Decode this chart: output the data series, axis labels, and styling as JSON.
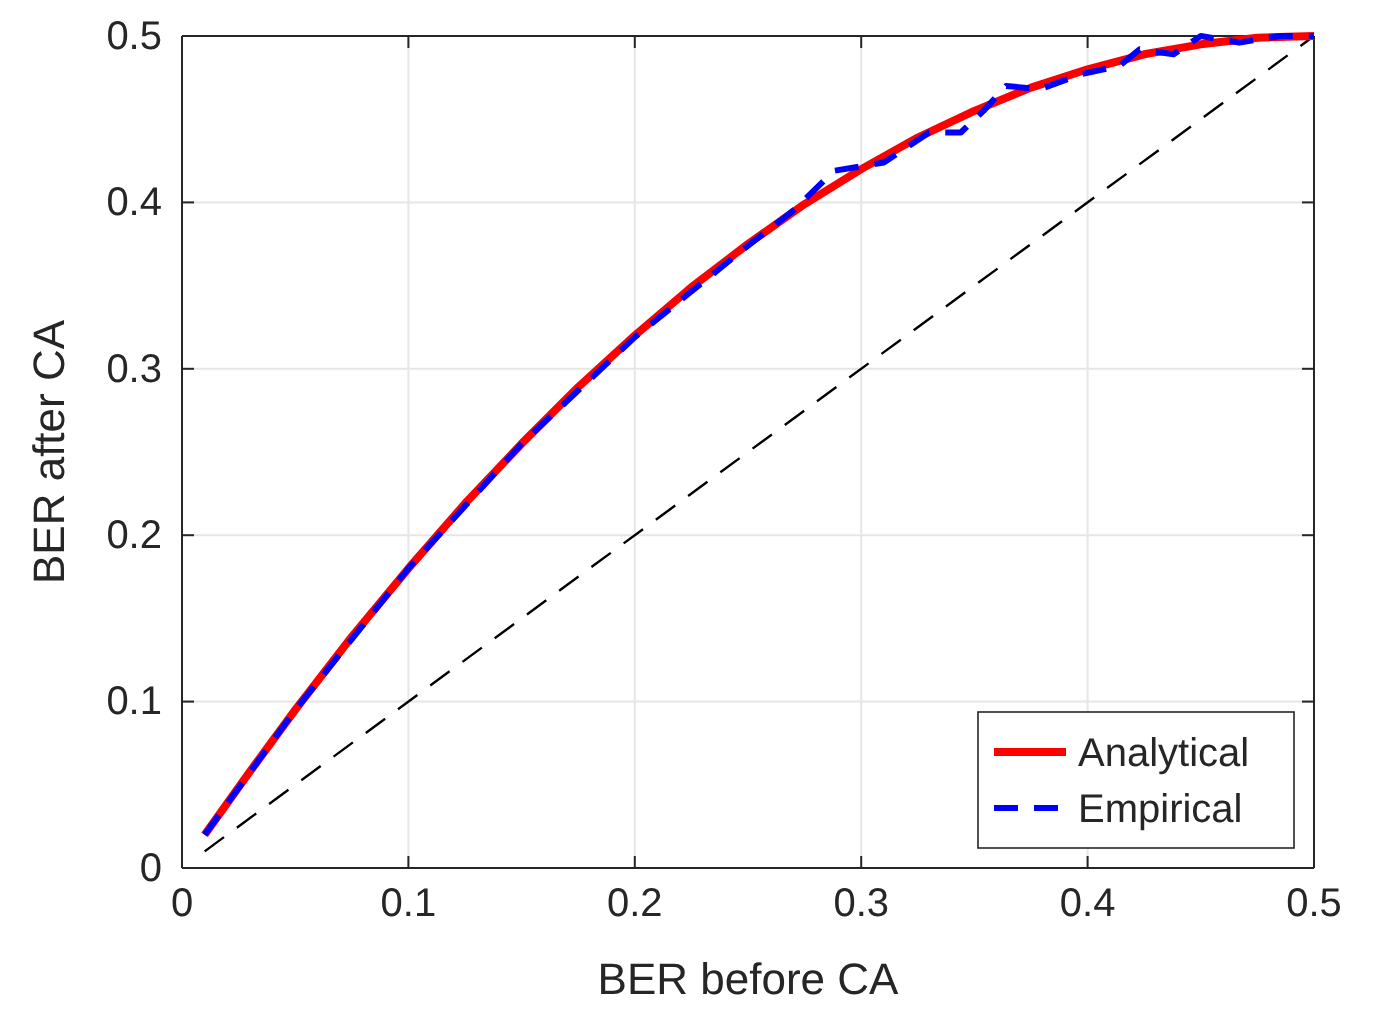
{
  "chart_data": {
    "type": "line",
    "xlabel": "BER before CA",
    "ylabel": "BER after CA",
    "xlim": [
      0,
      0.5
    ],
    "ylim": [
      0,
      0.5
    ],
    "xticks": [
      0,
      0.1,
      0.2,
      0.3,
      0.4,
      0.5
    ],
    "yticks": [
      0,
      0.1,
      0.2,
      0.3,
      0.4,
      0.5
    ],
    "grid": true,
    "legend": "bottom right",
    "series": [
      {
        "name": "Analytical",
        "color": "#ff0000",
        "line_style": "solid",
        "x": [
          0.01,
          0.03,
          0.05,
          0.075,
          0.1,
          0.125,
          0.15,
          0.175,
          0.2,
          0.225,
          0.25,
          0.275,
          0.3,
          0.325,
          0.35,
          0.375,
          0.4,
          0.425,
          0.45,
          0.475,
          0.5
        ],
        "values": [
          0.02,
          0.058,
          0.095,
          0.139,
          0.18,
          0.219,
          0.255,
          0.289,
          0.32,
          0.349,
          0.375,
          0.399,
          0.42,
          0.439,
          0.455,
          0.469,
          0.48,
          0.489,
          0.495,
          0.499,
          0.5
        ]
      },
      {
        "name": "Empirical",
        "color": "#0000ff",
        "line_style": "dashed",
        "x": [
          0.01,
          0.05,
          0.1,
          0.15,
          0.2,
          0.25,
          0.27,
          0.288,
          0.31,
          0.33,
          0.344,
          0.354,
          0.364,
          0.379,
          0.397,
          0.414,
          0.423,
          0.438,
          0.45,
          0.467,
          0.485,
          0.5
        ],
        "values": [
          0.02,
          0.095,
          0.18,
          0.255,
          0.319,
          0.374,
          0.395,
          0.419,
          0.424,
          0.442,
          0.442,
          0.455,
          0.47,
          0.468,
          0.477,
          0.482,
          0.492,
          0.489,
          0.5,
          0.496,
          0.5,
          0.5
        ]
      },
      {
        "color": "#000000",
        "line_style": "dashed",
        "x": [
          0.01,
          0.5
        ],
        "values": [
          0.01,
          0.5
        ]
      }
    ]
  }
}
